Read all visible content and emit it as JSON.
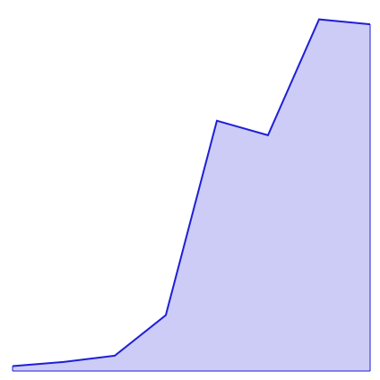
{
  "chart_data": {
    "type": "area",
    "x": [
      0,
      1,
      2,
      3,
      4,
      5,
      6,
      7
    ],
    "series": [
      {
        "values": [
          1.2,
          2.2,
          3.7,
          13.5,
          60.5,
          57.0,
          85.0,
          83.8
        ]
      }
    ],
    "xlim": [
      0,
      7
    ],
    "ylim": [
      0,
      86
    ],
    "grid": false,
    "legend": "none",
    "colors": {
      "fill": "#ccccf7",
      "line": "#1f1fd6",
      "axis": "#1f1fd6"
    }
  }
}
